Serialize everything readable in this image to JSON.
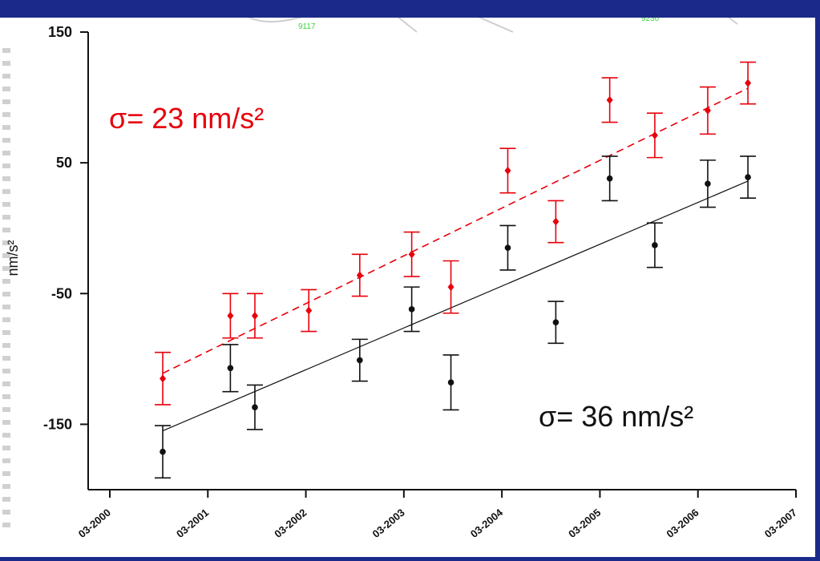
{
  "chart_data": {
    "type": "scatter",
    "ylabel": "nm/s²",
    "ylim": [
      -200,
      150
    ],
    "yticks": [
      150,
      50,
      -50,
      -150
    ],
    "xticks": [
      "03-2000",
      "03-2001",
      "03-2002",
      "03-2003",
      "03-2004",
      "03-2005",
      "03-2006",
      "03-2007"
    ],
    "series": [
      {
        "color": "#e8000b",
        "line_style": "dashed",
        "points": [
          {
            "x": 2000.54,
            "y": -115,
            "err": 20
          },
          {
            "x": 2001.23,
            "y": -67,
            "err": 17
          },
          {
            "x": 2001.48,
            "y": -67,
            "err": 17
          },
          {
            "x": 2002.03,
            "y": -63,
            "err": 16
          },
          {
            "x": 2002.55,
            "y": -36,
            "err": 16
          },
          {
            "x": 2003.08,
            "y": -20,
            "err": 17
          },
          {
            "x": 2003.48,
            "y": -45,
            "err": 20
          },
          {
            "x": 2004.06,
            "y": 44,
            "err": 17
          },
          {
            "x": 2004.55,
            "y": 5,
            "err": 16
          },
          {
            "x": 2005.1,
            "y": 98,
            "err": 17
          },
          {
            "x": 2005.56,
            "y": 71,
            "err": 17
          },
          {
            "x": 2006.1,
            "y": 90,
            "err": 18
          },
          {
            "x": 2006.51,
            "y": 111,
            "err": 16
          }
        ],
        "fit": {
          "x": [
            2000.54,
            2006.51
          ],
          "y": [
            -111,
            107
          ]
        },
        "annotation": "σ= 23 nm/s²"
      },
      {
        "color": "#111111",
        "line_style": "solid",
        "points": [
          {
            "x": 2000.54,
            "y": -171,
            "err": 20
          },
          {
            "x": 2001.23,
            "y": -107,
            "err": 18
          },
          {
            "x": 2001.48,
            "y": -137,
            "err": 17
          },
          {
            "x": 2002.55,
            "y": -101,
            "err": 16
          },
          {
            "x": 2003.08,
            "y": -62,
            "err": 17
          },
          {
            "x": 2003.48,
            "y": -118,
            "err": 21
          },
          {
            "x": 2004.06,
            "y": -15,
            "err": 17
          },
          {
            "x": 2004.55,
            "y": -72,
            "err": 16
          },
          {
            "x": 2005.1,
            "y": 38,
            "err": 17
          },
          {
            "x": 2005.56,
            "y": -13,
            "err": 17
          },
          {
            "x": 2006.1,
            "y": 34,
            "err": 18
          },
          {
            "x": 2006.51,
            "y": 39,
            "err": 16
          }
        ],
        "fit": {
          "x": [
            2000.54,
            2006.51
          ],
          "y": [
            -155,
            36
          ]
        },
        "annotation": "σ= 36 nm/s²"
      }
    ],
    "background_labels": [
      "9117",
      "9230"
    ]
  }
}
